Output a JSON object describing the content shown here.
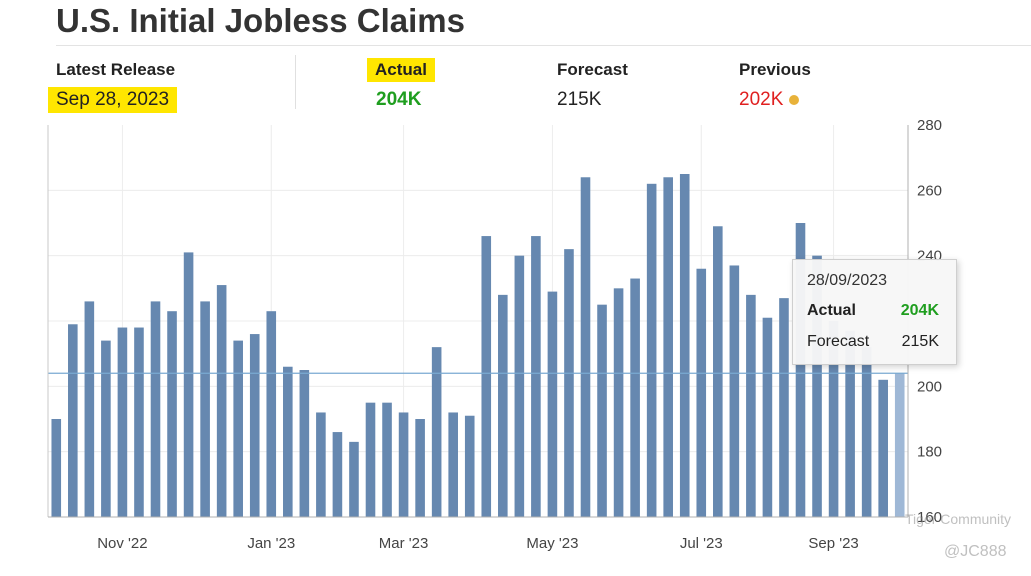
{
  "header": {
    "title": "U.S. Initial Jobless Claims",
    "latest_release_label": "Latest Release",
    "latest_release_value": "Sep 28, 2023",
    "actual_label": "Actual",
    "actual_value": "204K",
    "forecast_label": "Forecast",
    "forecast_value": "215K",
    "previous_label": "Previous",
    "previous_value": "202K"
  },
  "tooltip": {
    "date": "28/09/2023",
    "actual_label": "Actual",
    "actual_value": "204K",
    "forecast_label": "Forecast",
    "forecast_value": "215K"
  },
  "watermark": {
    "community": "Tiger Community",
    "handle": "@JC888"
  },
  "colors": {
    "bar": "#6688b0",
    "bar_last": "#9fb8d6",
    "reference_line": "#7aaad2",
    "actual_green": "#1f9e1f",
    "previous_red": "#e02020",
    "highlight": "#ffe600"
  },
  "chart_data": {
    "type": "bar",
    "values": [
      190,
      219,
      226,
      214,
      218,
      218,
      226,
      223,
      241,
      226,
      231,
      214,
      216,
      223,
      206,
      205,
      192,
      186,
      183,
      195,
      195,
      192,
      190,
      212,
      192,
      191,
      246,
      228,
      240,
      246,
      229,
      242,
      264,
      225,
      230,
      233,
      262,
      264,
      265,
      236,
      249,
      237,
      228,
      221,
      227,
      250,
      240,
      220,
      217,
      212,
      202,
      204
    ],
    "x_tick_labels": [
      "Nov '22",
      "Jan '23",
      "Mar '23",
      "May '23",
      "Jul '23",
      "Sep '23"
    ],
    "x_tick_bar_index": [
      4,
      13,
      21,
      30,
      39,
      47
    ],
    "y_ticks": [
      160,
      180,
      200,
      240,
      260,
      280
    ],
    "ylim": [
      160,
      280
    ],
    "reference_line_value": 204,
    "y_axis_side": "right",
    "grid": true
  }
}
